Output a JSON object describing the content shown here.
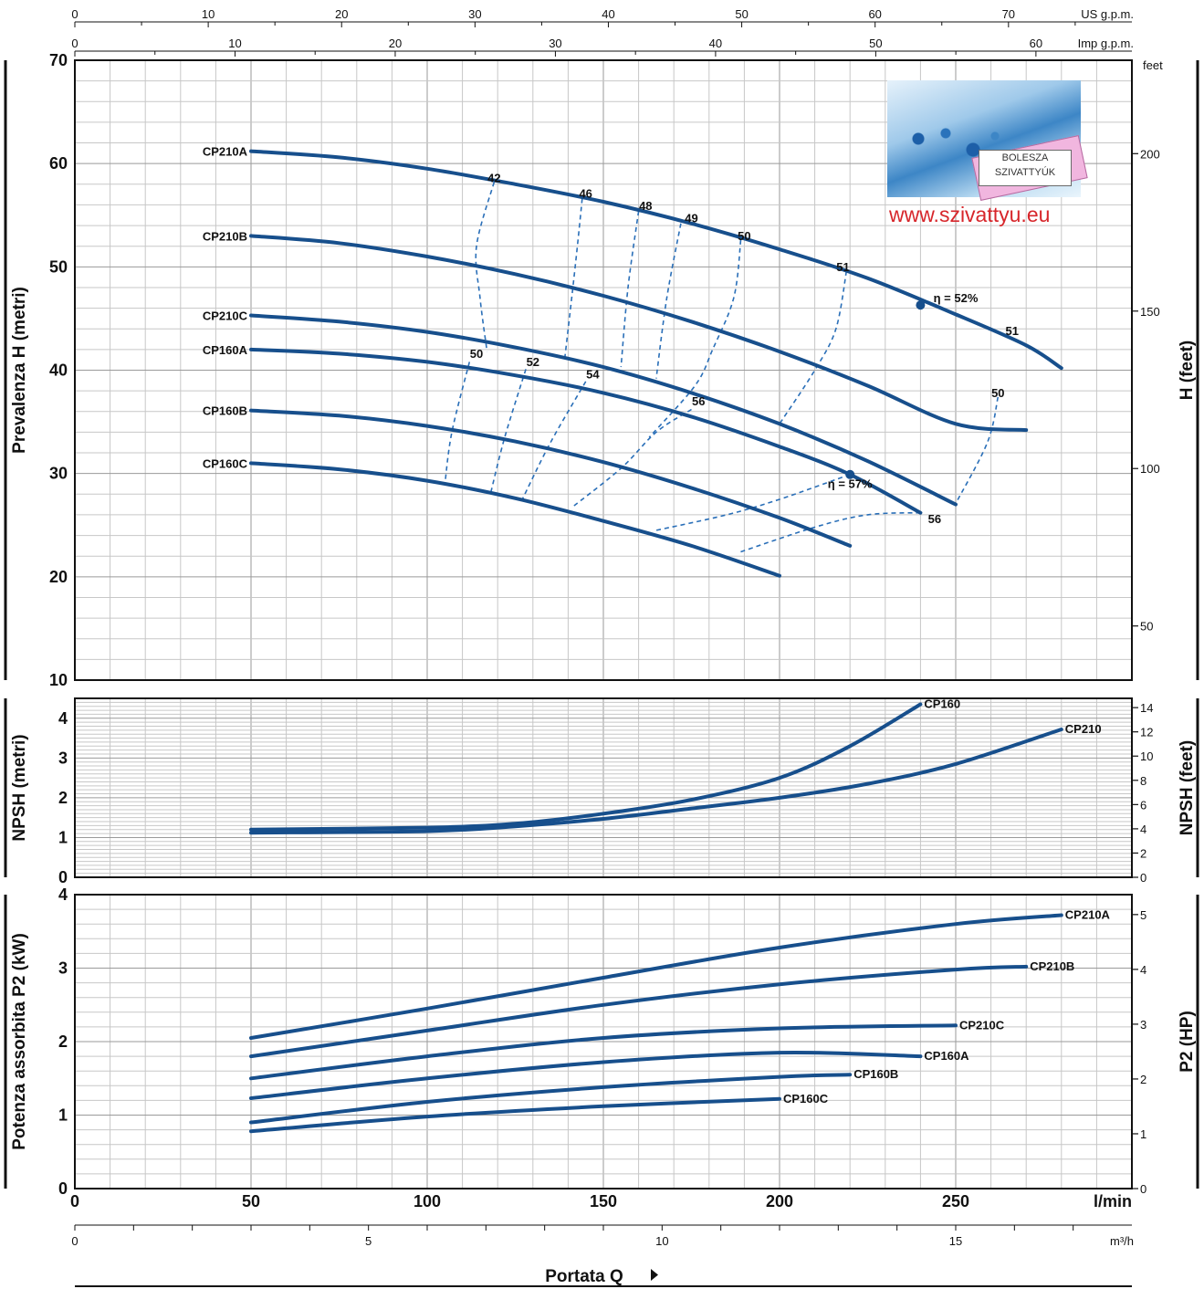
{
  "chart_data": [
    {
      "type": "line",
      "title": "",
      "ylabel": "Prevalenza H (metri)",
      "ylabel_right": "H (feet)",
      "right_unit": "feet",
      "xlim": [
        0,
        300
      ],
      "ylim": [
        10,
        70
      ],
      "yticks": [
        10,
        20,
        30,
        40,
        50,
        60,
        70
      ],
      "yticks_right": [
        50,
        100,
        150,
        200
      ],
      "top_axes": [
        {
          "unit": "US g.p.m.",
          "ticks": [
            0,
            10,
            20,
            30,
            40,
            50,
            60,
            70
          ]
        },
        {
          "unit": "Imp g.p.m.",
          "ticks": [
            0,
            10,
            20,
            30,
            40,
            50,
            60
          ]
        }
      ],
      "series": [
        {
          "name": "CP210A",
          "x": [
            50,
            75,
            100,
            125,
            150,
            175,
            200,
            225,
            250,
            270,
            280
          ],
          "y": [
            61.2,
            60.6,
            59.5,
            58.0,
            56.3,
            54.2,
            51.7,
            48.9,
            45.4,
            42.4,
            40.2
          ]
        },
        {
          "name": "CP210B",
          "x": [
            50,
            75,
            100,
            125,
            150,
            175,
            200,
            225,
            250,
            270
          ],
          "y": [
            53.0,
            52.3,
            51.0,
            49.3,
            47.2,
            44.7,
            41.8,
            38.5,
            34.8,
            34.2
          ]
        },
        {
          "name": "CP210C",
          "x": [
            50,
            75,
            100,
            125,
            150,
            175,
            200,
            225,
            250
          ],
          "y": [
            45.3,
            44.7,
            43.7,
            42.2,
            40.3,
            37.8,
            34.8,
            31.2,
            27.0
          ]
        },
        {
          "name": "CP160A",
          "x": [
            50,
            75,
            100,
            125,
            150,
            175,
            200,
            220,
            240
          ],
          "y": [
            42.0,
            41.6,
            40.8,
            39.5,
            37.8,
            35.5,
            32.6,
            29.9,
            26.2
          ]
        },
        {
          "name": "CP160B",
          "x": [
            50,
            75,
            100,
            125,
            150,
            175,
            200,
            220
          ],
          "y": [
            36.1,
            35.6,
            34.6,
            33.1,
            31.1,
            28.6,
            25.7,
            23.0
          ]
        },
        {
          "name": "CP160C",
          "x": [
            50,
            75,
            100,
            125,
            150,
            175,
            200
          ],
          "y": [
            31.0,
            30.4,
            29.3,
            27.6,
            25.4,
            23.0,
            20.1
          ]
        }
      ],
      "efficiency_labels": [
        {
          "text": "42",
          "x": 119,
          "y": 58.2
        },
        {
          "text": "46",
          "x": 145,
          "y": 56.7
        },
        {
          "text": "48",
          "x": 162,
          "y": 55.5
        },
        {
          "text": "49",
          "x": 175,
          "y": 54.3
        },
        {
          "text": "50",
          "x": 190,
          "y": 52.6
        },
        {
          "text": "51",
          "x": 218,
          "y": 49.6
        },
        {
          "text": "η = 52%",
          "x": 250,
          "y": 46.6
        },
        {
          "text": "51",
          "x": 266,
          "y": 43.4
        },
        {
          "text": "50",
          "x": 262,
          "y": 37.4
        },
        {
          "text": "50",
          "x": 114,
          "y": 41.2
        },
        {
          "text": "52",
          "x": 130,
          "y": 40.4
        },
        {
          "text": "54",
          "x": 147,
          "y": 39.2
        },
        {
          "text": "56",
          "x": 177,
          "y": 36.6
        },
        {
          "text": "η = 57%",
          "x": 220,
          "y": 28.6
        },
        {
          "text": "56",
          "x": 244,
          "y": 25.2
        }
      ],
      "efficiency_points": [
        {
          "x": 240,
          "y": 46.3
        },
        {
          "x": 220,
          "y": 29.9
        }
      ],
      "iso_efficiency_lines": [
        {
          "x": [
            119,
            114,
            115,
            117
          ],
          "y": [
            58.2,
            52.0,
            47.0,
            41.8
          ]
        },
        {
          "x": [
            144,
            142,
            139
          ],
          "y": [
            56.6,
            50.0,
            41.0
          ]
        },
        {
          "x": [
            160,
            157,
            155
          ],
          "y": [
            55.4,
            48.0,
            40.3
          ]
        },
        {
          "x": [
            172,
            168,
            165
          ],
          "y": [
            54.2,
            47.0,
            39.2
          ]
        },
        {
          "x": [
            189,
            187,
            181,
            176,
            163
          ],
          "y": [
            52.6,
            47.0,
            42.0,
            38.5,
            33.5
          ]
        },
        {
          "x": [
            219,
            216,
            210,
            200
          ],
          "y": [
            49.6,
            44.0,
            40.0,
            34.8
          ]
        },
        {
          "x": [
            262,
            259,
            250
          ],
          "y": [
            37.4,
            33.0,
            27.1
          ]
        },
        {
          "x": [
            112,
            107,
            105
          ],
          "y": [
            40.8,
            34.0,
            28.9
          ]
        },
        {
          "x": [
            128,
            122,
            118
          ],
          "y": [
            40.1,
            33.5,
            28.1
          ]
        },
        {
          "x": [
            145,
            135,
            127
          ],
          "y": [
            38.9,
            33.0,
            27.5
          ]
        },
        {
          "x": [
            175,
            165,
            155,
            141
          ],
          "y": [
            36.2,
            34.0,
            30.5,
            26.7
          ]
        },
        {
          "x": [
            220,
            200,
            185,
            165
          ],
          "y": [
            29.9,
            27.5,
            26.0,
            24.5
          ]
        },
        {
          "x": [
            240,
            225,
            210,
            188
          ],
          "y": [
            26.2,
            26.0,
            24.8,
            22.3
          ]
        }
      ]
    },
    {
      "type": "line",
      "title": "",
      "ylabel": "NPSH (metri)",
      "ylabel_right": "NPSH (feet)",
      "xlim": [
        0,
        300
      ],
      "ylim": [
        0,
        4.5
      ],
      "yticks": [
        0,
        1,
        2,
        3,
        4
      ],
      "yticks_right": [
        0,
        2,
        4,
        6,
        8,
        10,
        12,
        14
      ],
      "series": [
        {
          "name": "CP160",
          "x": [
            50,
            100,
            125,
            150,
            175,
            200,
            220,
            240
          ],
          "y": [
            1.2,
            1.25,
            1.35,
            1.6,
            1.95,
            2.5,
            3.3,
            4.35
          ]
        },
        {
          "name": "CP210",
          "x": [
            50,
            100,
            125,
            150,
            175,
            200,
            225,
            250,
            280
          ],
          "y": [
            1.12,
            1.16,
            1.28,
            1.47,
            1.73,
            2.0,
            2.35,
            2.85,
            3.72
          ]
        }
      ]
    },
    {
      "type": "line",
      "title": "",
      "ylabel": "Potenza assorbita P2 (kW)",
      "ylabel_right": "P2 (HP)",
      "xlim": [
        0,
        300
      ],
      "ylim": [
        0,
        4
      ],
      "yticks": [
        0,
        1,
        2,
        3,
        4
      ],
      "yticks_right": [
        0,
        1,
        2,
        3,
        4,
        5
      ],
      "series": [
        {
          "name": "CP210A",
          "x": [
            50,
            100,
            150,
            200,
            250,
            280
          ],
          "y": [
            2.05,
            2.45,
            2.87,
            3.28,
            3.6,
            3.72
          ]
        },
        {
          "name": "CP210B",
          "x": [
            50,
            100,
            150,
            200,
            250,
            270
          ],
          "y": [
            1.8,
            2.15,
            2.5,
            2.78,
            2.98,
            3.02
          ]
        },
        {
          "name": "CP210C",
          "x": [
            50,
            100,
            150,
            200,
            250
          ],
          "y": [
            1.5,
            1.8,
            2.05,
            2.18,
            2.22
          ]
        },
        {
          "name": "CP160A",
          "x": [
            50,
            100,
            150,
            200,
            240
          ],
          "y": [
            1.23,
            1.5,
            1.72,
            1.85,
            1.8
          ]
        },
        {
          "name": "CP160B",
          "x": [
            50,
            100,
            150,
            200,
            220
          ],
          "y": [
            0.9,
            1.18,
            1.38,
            1.52,
            1.55
          ]
        },
        {
          "name": "CP160C",
          "x": [
            50,
            100,
            150,
            200
          ],
          "y": [
            0.78,
            0.98,
            1.12,
            1.22
          ]
        }
      ]
    }
  ],
  "x_axis": {
    "unit": "l/min",
    "ticks": [
      0,
      50,
      100,
      150,
      200,
      250
    ],
    "secondary_unit": "m³/h",
    "secondary_ticks": [
      0,
      5,
      10,
      15
    ],
    "title": "Portata Q"
  },
  "logo": {
    "brand_line1": "BOLESZA",
    "brand_line2": "SZIVATTYÚK",
    "url": "www.szivattyu.eu"
  },
  "colors": {
    "curve": "#174f8c",
    "iso": "#2a6fb8",
    "url": "#d7262b"
  }
}
